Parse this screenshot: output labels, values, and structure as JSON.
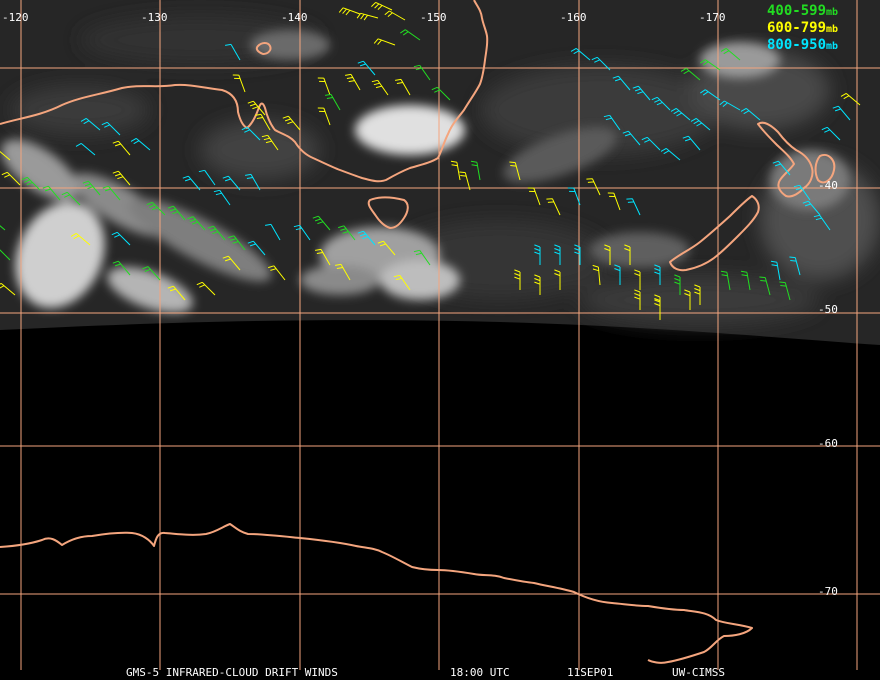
{
  "map": {
    "longitude_labels": [
      "-120",
      "-130",
      "-140",
      "-150",
      "-160",
      "-170"
    ],
    "latitude_labels": [
      "-40",
      "-50",
      "-60",
      "-70"
    ]
  },
  "legend": {
    "items": [
      {
        "range": "400-599",
        "unit": "mb",
        "color": "#22dd22"
      },
      {
        "range": "600-799",
        "unit": "mb",
        "color": "#ffff00"
      },
      {
        "range": "800-950",
        "unit": "mb",
        "color": "#00e5ff"
      }
    ]
  },
  "footer": {
    "product": "GMS-5 INFRARED-CLOUD DRIFT WINDS",
    "time": "18:00 UTC",
    "date": "11SEP01",
    "source": "UW-CIMSS"
  },
  "colors": {
    "grid": "#f4a57e",
    "coast": "#f4a57e",
    "background": "#000000"
  }
}
